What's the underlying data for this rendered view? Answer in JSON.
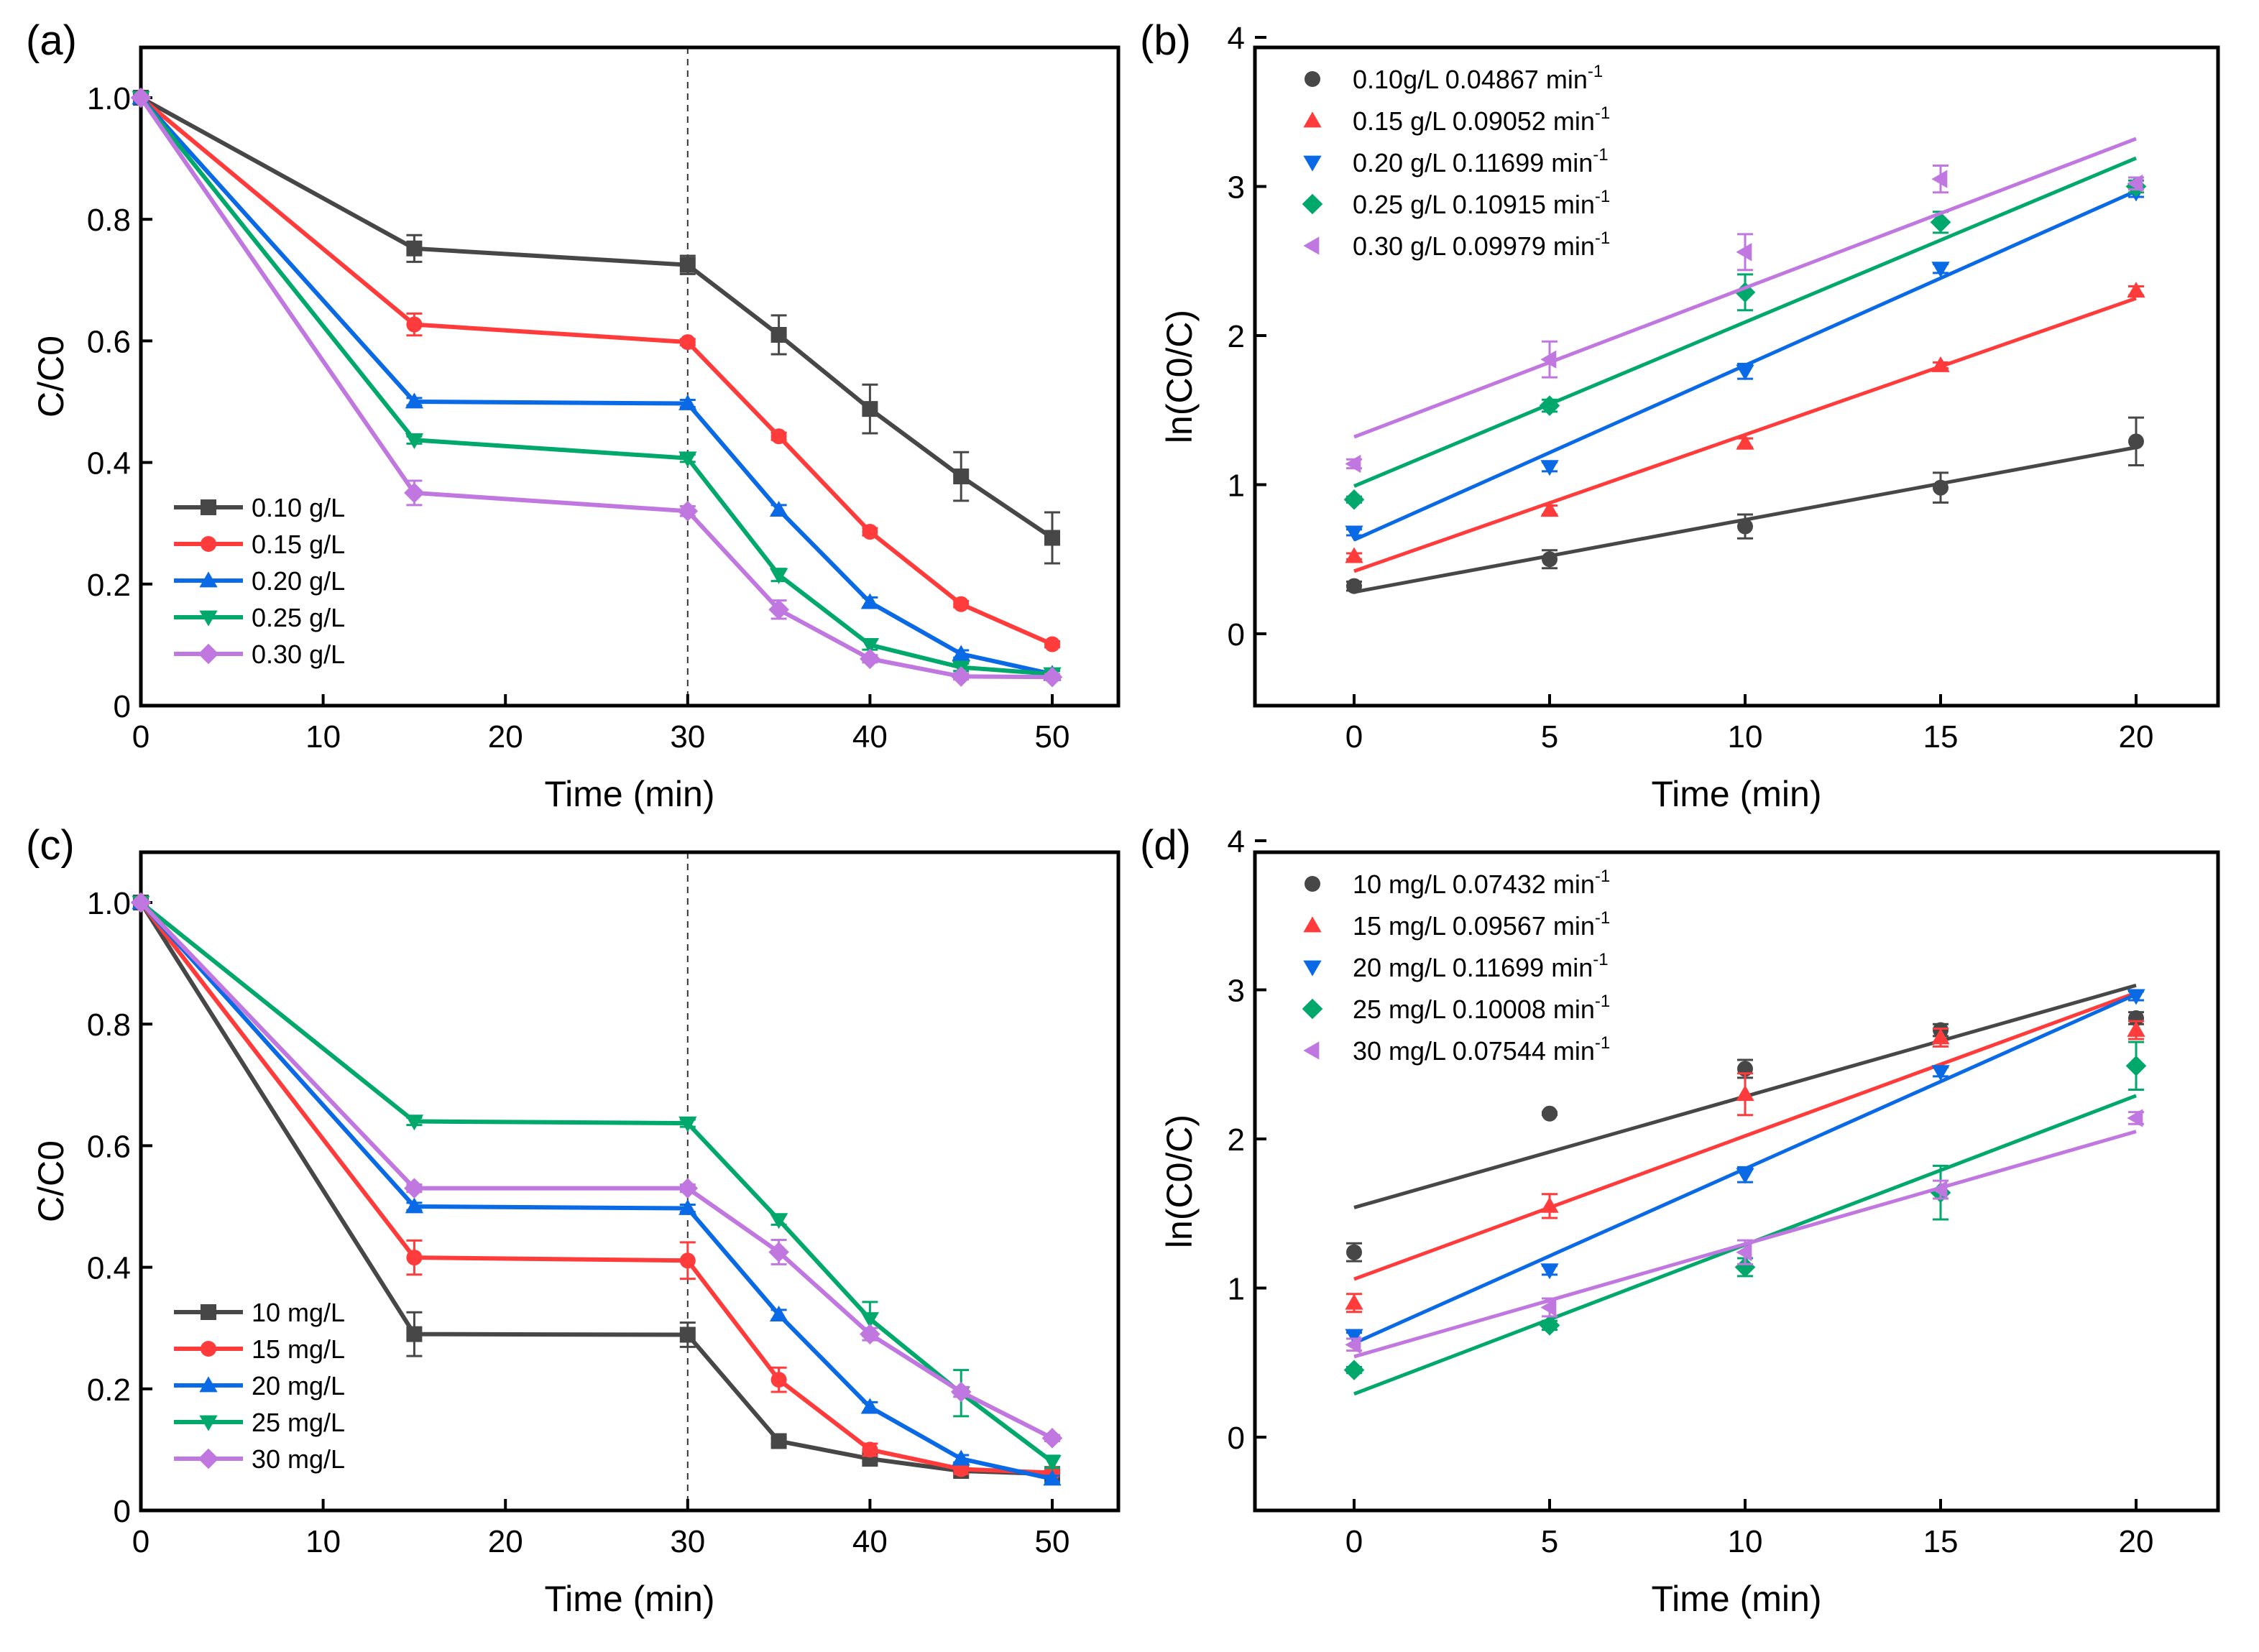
{
  "colors": {
    "s1": "#474747",
    "s2": "#ff3b3b",
    "s3": "#0a6ae6",
    "s4": "#00a86b",
    "s5": "#c077e0"
  },
  "chart_data": [
    {
      "id": "a",
      "panel_label": "(a)",
      "type": "line",
      "xlabel": "Time (min)",
      "ylabel": "C/C0",
      "xlim": [
        0,
        55
      ],
      "ylim": [
        0,
        1.1
      ],
      "xticks": [
        0,
        10,
        20,
        30,
        40,
        50
      ],
      "yticks": [
        0,
        0.2,
        0.4,
        0.6,
        0.8,
        1.0
      ],
      "ytick_labels": [
        "0",
        "0.2",
        "0.4",
        "0.6",
        "0.8",
        "1.0"
      ],
      "vline": 30,
      "legend_position": "bottom-left",
      "x": [
        0,
        15,
        30,
        35,
        40,
        45,
        50
      ],
      "series": [
        {
          "name": "0.10 g/L",
          "marker": "square",
          "color_key": "s1",
          "values": [
            1.0,
            0.752,
            0.725,
            0.61,
            0.488,
            0.377,
            0.276
          ],
          "errors": [
            0,
            0.022,
            0.015,
            0.032,
            0.04,
            0.04,
            0.042
          ]
        },
        {
          "name": "0.15 g/L",
          "marker": "circle",
          "color_key": "s2",
          "values": [
            1.0,
            0.627,
            0.598,
            0.443,
            0.286,
            0.167,
            0.101
          ],
          "errors": [
            0,
            0.018,
            0.005,
            0.006,
            0.006,
            0.005,
            0.005
          ]
        },
        {
          "name": "0.20 g/L",
          "marker": "triangle-up",
          "color_key": "s3",
          "values": [
            1.0,
            0.5,
            0.497,
            0.322,
            0.17,
            0.085,
            0.052
          ],
          "errors": [
            0,
            0.006,
            0.006,
            0.008,
            0.008,
            0.006,
            0.005
          ]
        },
        {
          "name": "0.25 g/L",
          "marker": "triangle-down",
          "color_key": "s4",
          "values": [
            1.0,
            0.437,
            0.407,
            0.215,
            0.1,
            0.063,
            0.052
          ],
          "errors": [
            0,
            0.006,
            0.006,
            0.01,
            0.008,
            0.006,
            0.005
          ]
        },
        {
          "name": "0.30 g/L",
          "marker": "diamond",
          "color_key": "s5",
          "values": [
            1.0,
            0.35,
            0.32,
            0.158,
            0.077,
            0.048,
            0.047
          ],
          "errors": [
            0,
            0.02,
            0.008,
            0.015,
            0.006,
            0.005,
            0.005
          ]
        }
      ]
    },
    {
      "id": "b",
      "panel_label": "(b)",
      "type": "scatter",
      "xlabel": "Time (min)",
      "ylabel": "ln(C0/C)",
      "xlim": [
        -2.5,
        22.5
      ],
      "ylim": [
        -0.5,
        4
      ],
      "xticks": [
        0,
        5,
        10,
        15,
        20
      ],
      "yticks": [
        0,
        1,
        2,
        3,
        4
      ],
      "ytick_labels": [
        "0",
        "1",
        "2",
        "3",
        "4"
      ],
      "legend_position": "top-left",
      "x": [
        0,
        5,
        10,
        15,
        20
      ],
      "series": [
        {
          "name": "0.10g/L  0.04867 min",
          "sup": "-1",
          "k": 0.04867,
          "marker": "circle",
          "color_key": "s1",
          "values": [
            0.32,
            0.5,
            0.72,
            0.98,
            1.29
          ],
          "errors": [
            0.03,
            0.06,
            0.08,
            0.1,
            0.16
          ],
          "fit": [
            0.28,
            1.25
          ]
        },
        {
          "name": "0.15 g/L 0.09052 min",
          "sup": "-1",
          "k": 0.09052,
          "marker": "triangle-up",
          "color_key": "s2",
          "values": [
            0.52,
            0.83,
            1.28,
            1.8,
            2.3
          ],
          "errors": [
            0.02,
            0.03,
            0.03,
            0.02,
            0.03
          ],
          "fit": [
            0.42,
            2.25
          ]
        },
        {
          "name": "0.20 g/L 0.11699 min",
          "sup": "-1",
          "k": 0.11699,
          "marker": "triangle-down",
          "color_key": "s3",
          "values": [
            0.68,
            1.12,
            1.76,
            2.45,
            2.96
          ],
          "errors": [
            0.02,
            0.03,
            0.05,
            0.03,
            0.03
          ],
          "fit": [
            0.63,
            2.97
          ]
        },
        {
          "name": "0.25 g/L 0.10915 min",
          "sup": "-1",
          "k": 0.10915,
          "marker": "diamond",
          "color_key": "s4",
          "values": [
            0.9,
            1.53,
            2.29,
            2.76,
            3.0
          ],
          "errors": [
            0.02,
            0.04,
            0.12,
            0.07,
            0.04
          ],
          "fit": [
            0.99,
            3.19
          ]
        },
        {
          "name": "0.30 g/L 0.09979 min",
          "sup": "-1",
          "k": 0.09979,
          "marker": "triangle-left",
          "color_key": "s5",
          "values": [
            1.14,
            1.84,
            2.56,
            3.05,
            3.02
          ],
          "errors": [
            0.03,
            0.12,
            0.12,
            0.09,
            0.04
          ],
          "fit": [
            1.32,
            3.32
          ]
        }
      ]
    },
    {
      "id": "c",
      "panel_label": "(c)",
      "type": "line",
      "xlabel": "Time (min)",
      "ylabel": "C/C0",
      "xlim": [
        0,
        55
      ],
      "ylim": [
        0,
        1.1
      ],
      "xticks": [
        0,
        10,
        20,
        30,
        40,
        50
      ],
      "yticks": [
        0,
        0.2,
        0.4,
        0.6,
        0.8,
        1.0
      ],
      "ytick_labels": [
        "0",
        "0.2",
        "0.4",
        "0.6",
        "0.8",
        "1.0"
      ],
      "vline": 30,
      "legend_position": "bottom-left",
      "x": [
        0,
        15,
        30,
        35,
        40,
        45,
        50
      ],
      "series": [
        {
          "name": "10 mg/L",
          "marker": "square",
          "color_key": "s1",
          "values": [
            1.0,
            0.29,
            0.289,
            0.114,
            0.085,
            0.065,
            0.06
          ],
          "errors": [
            0,
            0.036,
            0.02,
            0.005,
            0.005,
            0.005,
            0.005
          ]
        },
        {
          "name": "15 mg/L",
          "marker": "circle",
          "color_key": "s2",
          "values": [
            1.0,
            0.416,
            0.411,
            0.215,
            0.1,
            0.068,
            0.062
          ],
          "errors": [
            0,
            0.028,
            0.03,
            0.02,
            0.01,
            0.008,
            0.006
          ]
        },
        {
          "name": "20 mg/L",
          "marker": "triangle-up",
          "color_key": "s3",
          "values": [
            1.0,
            0.5,
            0.497,
            0.322,
            0.17,
            0.085,
            0.052
          ],
          "errors": [
            0,
            0.006,
            0.006,
            0.008,
            0.008,
            0.006,
            0.005
          ]
        },
        {
          "name": "25 mg/L",
          "marker": "triangle-down",
          "color_key": "s4",
          "values": [
            1.0,
            0.64,
            0.637,
            0.478,
            0.315,
            0.193,
            0.08
          ],
          "errors": [
            0,
            0.006,
            0.006,
            0.008,
            0.028,
            0.038,
            0.01
          ]
        },
        {
          "name": "30 mg/L",
          "marker": "diamond",
          "color_key": "s5",
          "values": [
            1.0,
            0.53,
            0.53,
            0.425,
            0.29,
            0.195,
            0.119
          ],
          "errors": [
            0,
            0.006,
            0.006,
            0.02,
            0.01,
            0.008,
            0.005
          ]
        }
      ]
    },
    {
      "id": "d",
      "panel_label": "(d)",
      "type": "scatter",
      "xlabel": "Time (min)",
      "ylabel": "ln(C0/C)",
      "xlim": [
        -2.5,
        22.5
      ],
      "ylim": [
        -0.5,
        4
      ],
      "xticks": [
        0,
        5,
        10,
        15,
        20
      ],
      "yticks": [
        0,
        1,
        2,
        3,
        4
      ],
      "ytick_labels": [
        "0",
        "1",
        "2",
        "3",
        "4"
      ],
      "legend_position": "top-left",
      "x": [
        0,
        5,
        10,
        15,
        20
      ],
      "series": [
        {
          "name": "10 mg/L 0.07432 min",
          "sup": "-1",
          "k": 0.07432,
          "marker": "circle",
          "color_key": "s1",
          "values": [
            1.24,
            2.17,
            2.47,
            2.73,
            2.81
          ],
          "errors": [
            0.06,
            0.01,
            0.06,
            0.04,
            0.04
          ],
          "fit": [
            1.54,
            3.03
          ]
        },
        {
          "name": "15 mg/L 0.09567 min",
          "sup": "-1",
          "k": 0.09567,
          "marker": "triangle-up",
          "color_key": "s2",
          "values": [
            0.9,
            1.55,
            2.3,
            2.68,
            2.73
          ],
          "errors": [
            0.06,
            0.08,
            0.14,
            0.06,
            0.06
          ],
          "fit": [
            1.06,
            2.98
          ]
        },
        {
          "name": "20 mg/L 0.11699 min",
          "sup": "-1",
          "k": 0.11699,
          "marker": "triangle-down",
          "color_key": "s3",
          "values": [
            0.68,
            1.12,
            1.76,
            2.45,
            2.96
          ],
          "errors": [
            0.02,
            0.03,
            0.05,
            0.03,
            0.03
          ],
          "fit": [
            0.63,
            2.97
          ]
        },
        {
          "name": "25 mg/L 0.10008 min",
          "sup": "-1",
          "k": 0.10008,
          "marker": "diamond",
          "color_key": "s4",
          "values": [
            0.45,
            0.75,
            1.14,
            1.64,
            2.49
          ],
          "errors": [
            0.02,
            0.03,
            0.06,
            0.18,
            0.16
          ],
          "fit": [
            0.29,
            2.29
          ]
        },
        {
          "name": "30 mg/L 0.07544 min",
          "sup": "-1",
          "k": 0.07544,
          "marker": "triangle-left",
          "color_key": "s5",
          "values": [
            0.62,
            0.87,
            1.24,
            1.66,
            2.14
          ],
          "errors": [
            0.04,
            0.06,
            0.08,
            0.06,
            0.04
          ],
          "fit": [
            0.54,
            2.05
          ]
        }
      ]
    }
  ]
}
